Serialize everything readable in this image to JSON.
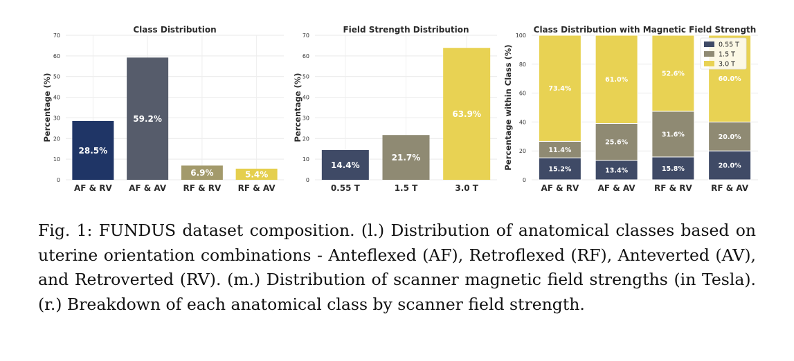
{
  "chart_data": [
    {
      "type": "bar",
      "title": "Class Distribution",
      "ylabel": "Percentage (%)",
      "ylim": [
        0,
        70
      ],
      "yticks": [
        0,
        10,
        20,
        30,
        40,
        50,
        60,
        70
      ],
      "categories": [
        "AF & RV",
        "AF & AV",
        "RF & RV",
        "RF & AV"
      ],
      "values": [
        28.5,
        59.2,
        6.9,
        5.4
      ],
      "labels": [
        "28.5%",
        "59.2%",
        "6.9%",
        "5.4%"
      ],
      "colors": [
        "#1f3566",
        "#565c6b",
        "#a39a6b",
        "#e5cf4e"
      ],
      "grid": true
    },
    {
      "type": "bar",
      "title": "Field Strength Distribution",
      "ylabel": "Percentage (%)",
      "ylim": [
        0,
        70
      ],
      "yticks": [
        0,
        10,
        20,
        30,
        40,
        50,
        60,
        70
      ],
      "categories": [
        "0.55 T",
        "1.5 T",
        "3.0 T"
      ],
      "values": [
        14.4,
        21.7,
        63.9
      ],
      "labels": [
        "14.4%",
        "21.7%",
        "63.9%"
      ],
      "colors": [
        "#3f4a66",
        "#8f8a73",
        "#e8d253"
      ],
      "grid": true
    },
    {
      "type": "bar",
      "stacked": true,
      "title": "Class Distribution with Magnetic Field Strength",
      "ylabel": "Percentage within Class (%)",
      "ylim": [
        0,
        100
      ],
      "yticks": [
        0,
        20,
        40,
        60,
        80,
        100
      ],
      "categories": [
        "AF & RV",
        "AF & AV",
        "RF & RV",
        "RF & AV"
      ],
      "series": [
        {
          "name": "0.55 T",
          "color": "#3f4a66",
          "values": [
            15.2,
            13.4,
            15.8,
            20.0
          ],
          "labels": [
            "15.2%",
            "13.4%",
            "15.8%",
            "20.0%"
          ]
        },
        {
          "name": "1.5 T",
          "color": "#8f8a73",
          "values": [
            11.4,
            25.6,
            31.6,
            20.0
          ],
          "labels": [
            "11.4%",
            "25.6%",
            "31.6%",
            "20.0%"
          ]
        },
        {
          "name": "3.0 T",
          "color": "#e8d253",
          "values": [
            73.4,
            61.0,
            52.6,
            60.0
          ],
          "labels": [
            "73.4%",
            "61.0%",
            "52.6%",
            "60.0%"
          ]
        }
      ],
      "legend": "top-right",
      "grid": true
    }
  ],
  "caption": "Fig. 1: FUNDUS dataset composition. (l.) Distribution of anatomical classes based on uterine orientation combinations - Anteflexed (AF), Retroflexed (RF), Anteverted (AV), and Retroverted (RV). (m.) Distribution of scanner magnetic field strengths (in Tesla). (r.) Breakdown of each anatomical class by scanner field strength."
}
